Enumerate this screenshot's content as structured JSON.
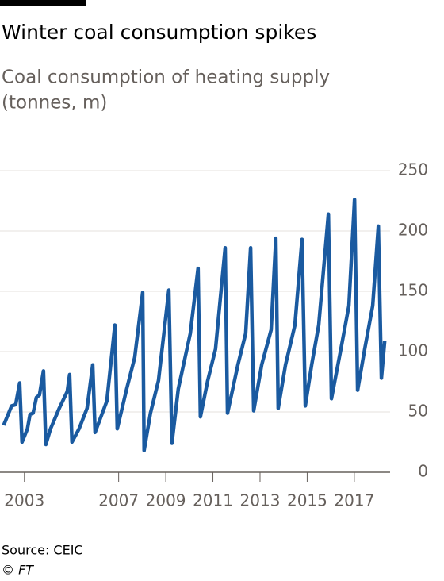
{
  "chart_data": {
    "type": "line",
    "title": "Winter coal consumption spikes",
    "subtitle": [
      "Coal consumption of heating supply",
      "(tonnes, m)"
    ],
    "source": "Source: CEIC",
    "credit": "© FT",
    "x": [
      2002.12,
      2002.46,
      2002.63,
      2002.8,
      2002.9,
      2003.13,
      2003.24,
      2003.37,
      2003.51,
      2003.64,
      2003.81,
      2003.91,
      2004.11,
      2004.48,
      2004.82,
      2004.92,
      2005.02,
      2005.32,
      2005.66,
      2005.9,
      2006.0,
      2006.5,
      2006.84,
      2006.94,
      2007.34,
      2007.68,
      2008.02,
      2008.08,
      2008.35,
      2008.69,
      2009.13,
      2009.26,
      2009.53,
      2010.04,
      2010.37,
      2010.47,
      2010.78,
      2011.11,
      2011.52,
      2011.62,
      2012.06,
      2012.39,
      2012.6,
      2012.73,
      2013.07,
      2013.47,
      2013.67,
      2013.77,
      2014.08,
      2014.48,
      2014.78,
      2014.92,
      2015.19,
      2015.49,
      2015.9,
      2016.03,
      2016.43,
      2016.77,
      2017.01,
      2017.14,
      2017.44,
      2017.78,
      2018.02,
      2018.15,
      2018.29
    ],
    "series": [
      {
        "name": "Coal consumption",
        "color": "#1a5aa0",
        "values": [
          39,
          55,
          56,
          74,
          25,
          36,
          48,
          49,
          62,
          64,
          84,
          23,
          36,
          53,
          67,
          81,
          25,
          36,
          53,
          89,
          33,
          59,
          122,
          36,
          69,
          95,
          149,
          18,
          49,
          76,
          151,
          24,
          69,
          115,
          169,
          46,
          76,
          102,
          186,
          49,
          89,
          115,
          186,
          51,
          89,
          118,
          194,
          53,
          89,
          122,
          193,
          55,
          89,
          122,
          214,
          61,
          102,
          138,
          226,
          68,
          102,
          138,
          204,
          78,
          109
        ]
      }
    ],
    "xlim": [
      2002.1,
      2018.35
    ],
    "xticks": [
      2003,
      2007,
      2009,
      2011,
      2013,
      2015,
      2017
    ],
    "ylim": [
      0,
      250
    ],
    "yticks": [
      0,
      50,
      100,
      150,
      200,
      250
    ],
    "grid": true
  }
}
